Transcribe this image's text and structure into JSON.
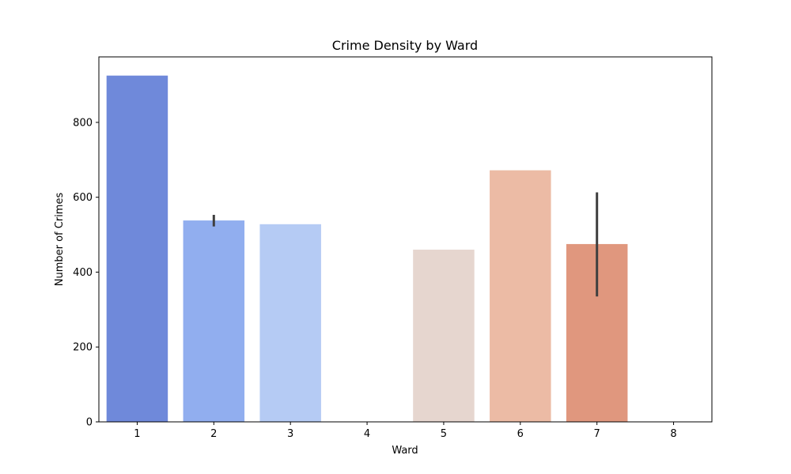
{
  "chart_data": {
    "type": "bar",
    "title": "Crime Density by Ward",
    "xlabel": "Ward",
    "ylabel": "Number of Crimes",
    "categories": [
      "1",
      "2",
      "3",
      "4",
      "5",
      "6",
      "7",
      "8"
    ],
    "values": [
      925,
      538,
      528,
      0,
      460,
      672,
      475,
      0
    ],
    "error_bars": [
      null,
      [
        522,
        553
      ],
      null,
      null,
      null,
      null,
      [
        335,
        613
      ],
      null
    ],
    "colors": [
      "#6f89da",
      "#91aeef",
      "#b5cbf4",
      "#dddcdb",
      "#e6d6cf",
      "#ecbba5",
      "#e0977e",
      "#d17161"
    ],
    "ylim": [
      0,
      975
    ],
    "yticks": [
      0,
      200,
      400,
      600,
      800
    ],
    "grid": false,
    "legend": "none"
  }
}
